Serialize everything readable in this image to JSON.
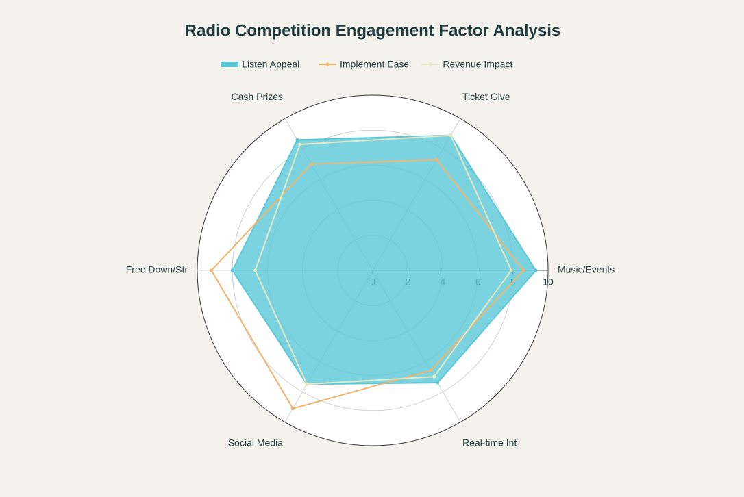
{
  "chart_data": {
    "type": "radar",
    "title": "Radio Competition Engagement Factor Analysis",
    "categories": [
      "Music/Events",
      "Ticket Give",
      "Cash Prizes",
      "Free Down/Str",
      "Social Media",
      "Real-time Int"
    ],
    "series": [
      {
        "name": "Listen Appeal",
        "color": "#5bc8d8",
        "fill": true,
        "values": [
          9.3,
          8.9,
          8.6,
          8.0,
          7.5,
          7.4
        ]
      },
      {
        "name": "Implement Ease",
        "color": "#f2b36b",
        "fill": false,
        "values": [
          8.6,
          7.3,
          7.0,
          9.2,
          9.1,
          6.6
        ]
      },
      {
        "name": "Revenue Impact",
        "color": "#e4e9c6",
        "fill": false,
        "values": [
          7.9,
          8.9,
          8.3,
          6.7,
          7.5,
          7.0
        ]
      }
    ],
    "rlim": [
      0,
      10
    ],
    "rticks": [
      0,
      2,
      4,
      6,
      8,
      10
    ],
    "grid": true
  }
}
